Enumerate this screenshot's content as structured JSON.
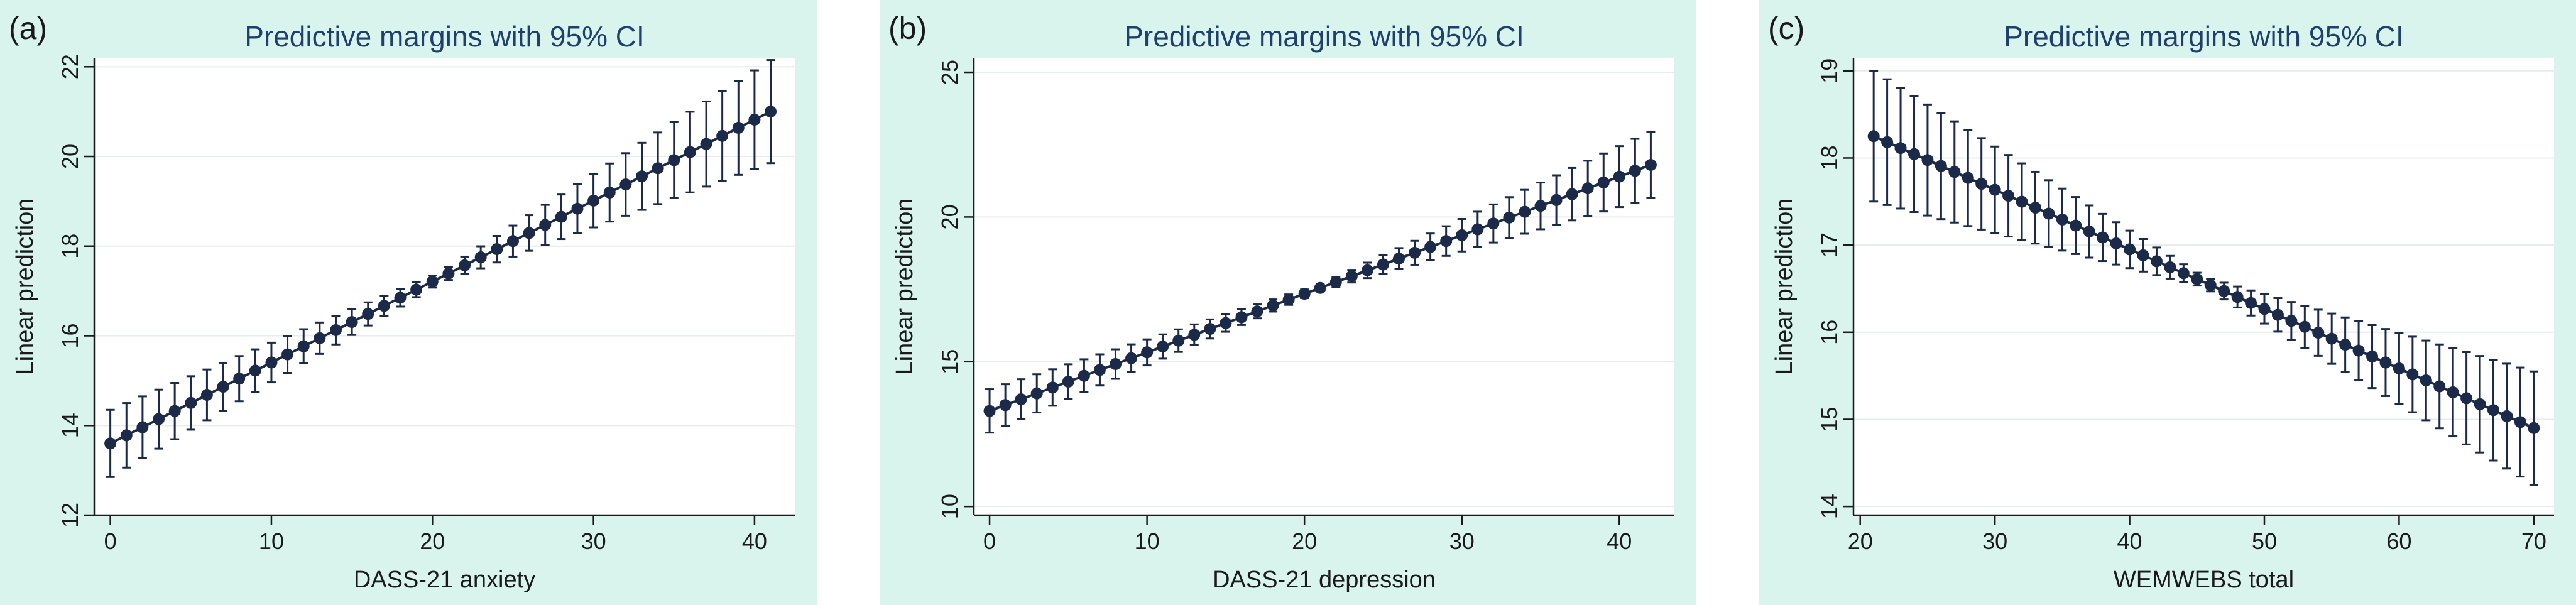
{
  "chart_data": [
    {
      "type": "scatter",
      "panel_label": "(a)",
      "title": "Predictive margins with 95% CI",
      "xlabel": "DASS-21 anxiety",
      "ylabel": "Linear prediction",
      "xlim": [
        -1,
        42.5
      ],
      "ylim": [
        12,
        22.2
      ],
      "xticks": [
        0,
        10,
        20,
        30,
        40
      ],
      "xtick_labels": [
        "0",
        "10",
        "20",
        "30",
        "40"
      ],
      "yticks": [
        12,
        14,
        16,
        18,
        20,
        22
      ],
      "ytick_labels": [
        "12",
        "14",
        "16",
        "18",
        "20",
        "22"
      ],
      "grid": true,
      "x_start": 0,
      "x_end": 41,
      "y_start": 13.6,
      "y_end": 21.0,
      "ci_half_start": 0.75,
      "ci_half_mid": 0.12,
      "ci_half_end": 1.15
    },
    {
      "type": "scatter",
      "panel_label": "(b)",
      "title": "Predictive margins with 95% CI",
      "xlabel": "DASS-21 depression",
      "ylabel": "Linear prediction",
      "xlim": [
        -1,
        43.5
      ],
      "ylim": [
        9.7,
        25.5
      ],
      "xticks": [
        0,
        10,
        20,
        30,
        40
      ],
      "xtick_labels": [
        "0",
        "10",
        "20",
        "30",
        "40"
      ],
      "yticks": [
        10,
        15,
        20,
        25
      ],
      "ytick_labels": [
        "10",
        "15",
        "20",
        "25"
      ],
      "grid": true,
      "x_start": 0,
      "x_end": 42,
      "y_start": 13.3,
      "y_end": 21.8,
      "ci_half_start": 0.75,
      "ci_half_mid": 0.12,
      "ci_half_end": 1.15
    },
    {
      "type": "scatter",
      "panel_label": "(c)",
      "title": "Predictive margins with 95% CI",
      "xlabel": "WEMWEBS total",
      "ylabel": "Linear prediction",
      "xlim": [
        19.5,
        71.5
      ],
      "ylim": [
        13.9,
        19.15
      ],
      "xticks": [
        20,
        30,
        40,
        50,
        60,
        70
      ],
      "xtick_labels": [
        "20",
        "30",
        "40",
        "50",
        "60",
        "70"
      ],
      "yticks": [
        14,
        15,
        16,
        17,
        18,
        19
      ],
      "ytick_labels": [
        "14",
        "15",
        "16",
        "17",
        "18",
        "19"
      ],
      "grid": true,
      "x_start": 21,
      "x_end": 70,
      "y_start": 18.25,
      "y_end": 14.9,
      "ci_half_start": 0.75,
      "ci_half_mid": 0.06,
      "ci_half_end": 0.65
    }
  ],
  "colors": {
    "frame": "#d9f4ec",
    "plot_bg": "#ffffff",
    "grid": "#e6ecea",
    "marker": "#1b2a49",
    "title": "#1f3f6e",
    "text": "#1a1a1a"
  }
}
